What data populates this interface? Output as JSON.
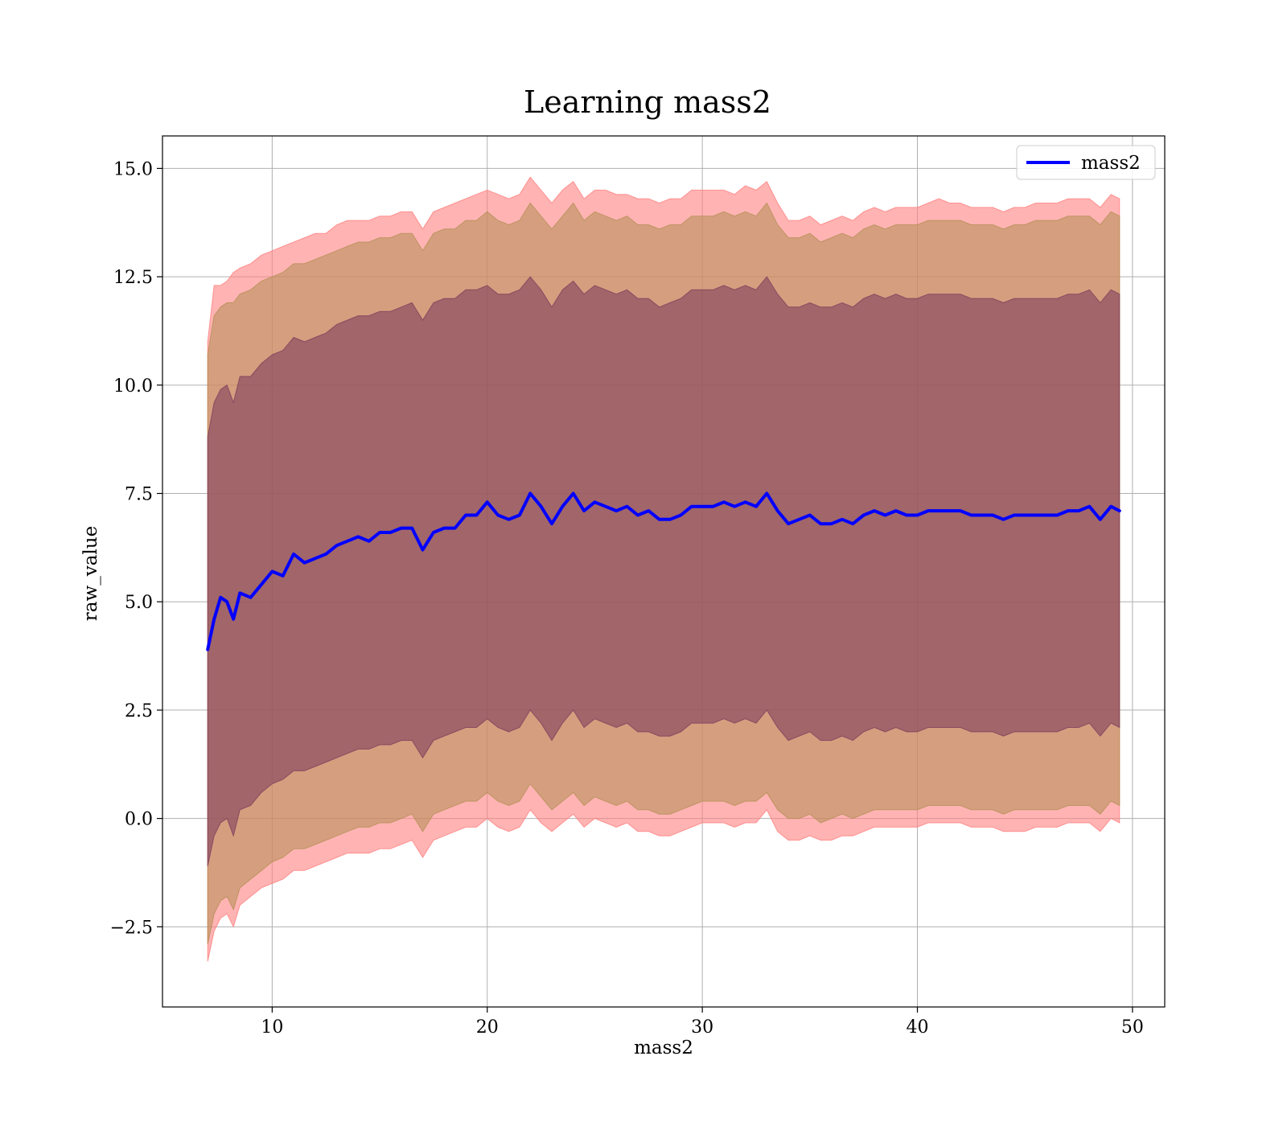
{
  "chart_data": {
    "type": "line",
    "title": "Learning mass2",
    "xlabel": "mass2",
    "ylabel": "raw_value",
    "xlim": [
      4.9,
      51.5
    ],
    "ylim": [
      -4.35,
      15.75
    ],
    "xticks": [
      10,
      20,
      30,
      40,
      50
    ],
    "yticks": [
      -2.5,
      0.0,
      2.5,
      5.0,
      7.5,
      10.0,
      12.5,
      15.0
    ],
    "xtick_labels": [
      "10",
      "20",
      "30",
      "40",
      "50"
    ],
    "ytick_labels": [
      "−2.5",
      "0.0",
      "2.5",
      "5.0",
      "7.5",
      "10.0",
      "12.5",
      "15.0"
    ],
    "grid": true,
    "legend": {
      "position": "top-right",
      "entries": [
        {
          "label": "mass2",
          "color": "#0000ff"
        }
      ]
    },
    "series": [
      {
        "name": "mass2",
        "color": "#0000ff",
        "x": [
          7.0,
          7.3,
          7.6,
          7.9,
          8.2,
          8.5,
          9.0,
          9.5,
          10.0,
          10.5,
          11.0,
          11.5,
          12.0,
          12.5,
          13.0,
          13.5,
          14.0,
          14.5,
          15.0,
          15.5,
          16.0,
          16.5,
          17.0,
          17.5,
          18.0,
          18.5,
          19.0,
          19.5,
          20.0,
          20.5,
          21.0,
          21.5,
          22.0,
          22.5,
          23.0,
          23.5,
          24.0,
          24.5,
          25.0,
          25.5,
          26.0,
          26.5,
          27.0,
          27.5,
          28.0,
          28.5,
          29.0,
          29.5,
          30.0,
          30.5,
          31.0,
          31.5,
          32.0,
          32.5,
          33.0,
          33.5,
          34.0,
          34.5,
          35.0,
          35.5,
          36.0,
          36.5,
          37.0,
          37.5,
          38.0,
          38.5,
          39.0,
          39.5,
          40.0,
          40.5,
          41.0,
          41.5,
          42.0,
          42.5,
          43.0,
          43.5,
          44.0,
          44.5,
          45.0,
          45.5,
          46.0,
          46.5,
          47.0,
          47.5,
          48.0,
          48.5,
          49.0,
          49.4
        ],
        "y": [
          3.9,
          4.6,
          5.1,
          5.0,
          4.6,
          5.2,
          5.1,
          5.4,
          5.7,
          5.6,
          6.1,
          5.9,
          6.0,
          6.1,
          6.3,
          6.4,
          6.5,
          6.4,
          6.6,
          6.6,
          6.7,
          6.7,
          6.2,
          6.6,
          6.7,
          6.7,
          7.0,
          7.0,
          7.3,
          7.0,
          6.9,
          7.0,
          7.5,
          7.2,
          6.8,
          7.2,
          7.5,
          7.1,
          7.3,
          7.2,
          7.1,
          7.2,
          7.0,
          7.1,
          6.9,
          6.9,
          7.0,
          7.2,
          7.2,
          7.2,
          7.3,
          7.2,
          7.3,
          7.2,
          7.5,
          7.1,
          6.8,
          6.9,
          7.0,
          6.8,
          6.8,
          6.9,
          6.8,
          7.0,
          7.1,
          7.0,
          7.1,
          7.0,
          7.0,
          7.1,
          7.1,
          7.1,
          7.1,
          7.0,
          7.0,
          7.0,
          6.9,
          7.0,
          7.0,
          7.0,
          7.0,
          7.0,
          7.1,
          7.1,
          7.2,
          6.9,
          7.2,
          7.1
        ]
      }
    ],
    "bands": [
      {
        "color": "#ff8080",
        "opacity": 0.6,
        "upper": [
          11.0,
          12.3,
          12.3,
          12.4,
          12.6,
          12.7,
          12.8,
          13.0,
          13.1,
          13.2,
          13.3,
          13.4,
          13.5,
          13.5,
          13.7,
          13.8,
          13.8,
          13.8,
          13.9,
          13.9,
          14.0,
          14.0,
          13.6,
          14.0,
          14.1,
          14.2,
          14.3,
          14.4,
          14.5,
          14.4,
          14.3,
          14.4,
          14.8,
          14.5,
          14.2,
          14.5,
          14.7,
          14.3,
          14.5,
          14.5,
          14.4,
          14.4,
          14.3,
          14.3,
          14.2,
          14.3,
          14.3,
          14.5,
          14.5,
          14.5,
          14.5,
          14.4,
          14.6,
          14.5,
          14.7,
          14.2,
          13.8,
          13.8,
          13.9,
          13.7,
          13.8,
          13.9,
          13.8,
          14.0,
          14.1,
          14.0,
          14.1,
          14.1,
          14.1,
          14.2,
          14.3,
          14.2,
          14.2,
          14.1,
          14.1,
          14.1,
          14.0,
          14.1,
          14.1,
          14.2,
          14.2,
          14.2,
          14.3,
          14.3,
          14.3,
          14.1,
          14.4,
          14.3
        ],
        "lower": [
          -3.3,
          -2.6,
          -2.3,
          -2.2,
          -2.5,
          -2.0,
          -1.8,
          -1.6,
          -1.5,
          -1.4,
          -1.2,
          -1.2,
          -1.1,
          -1.0,
          -0.9,
          -0.8,
          -0.8,
          -0.8,
          -0.7,
          -0.7,
          -0.6,
          -0.5,
          -0.9,
          -0.5,
          -0.4,
          -0.3,
          -0.2,
          -0.2,
          0.0,
          -0.2,
          -0.3,
          -0.2,
          0.2,
          -0.1,
          -0.3,
          -0.1,
          0.1,
          -0.2,
          0.0,
          -0.1,
          -0.2,
          -0.1,
          -0.3,
          -0.3,
          -0.4,
          -0.4,
          -0.3,
          -0.2,
          -0.1,
          -0.1,
          -0.1,
          -0.2,
          -0.1,
          -0.1,
          0.2,
          -0.3,
          -0.5,
          -0.5,
          -0.4,
          -0.5,
          -0.5,
          -0.4,
          -0.4,
          -0.3,
          -0.2,
          -0.2,
          -0.2,
          -0.2,
          -0.2,
          -0.1,
          -0.1,
          -0.1,
          -0.1,
          -0.2,
          -0.2,
          -0.2,
          -0.3,
          -0.3,
          -0.3,
          -0.2,
          -0.2,
          -0.2,
          -0.1,
          -0.1,
          -0.1,
          -0.3,
          0.0,
          -0.1
        ]
      },
      {
        "color": "#b38e54",
        "opacity": 0.55,
        "upper": [
          10.7,
          11.6,
          11.8,
          11.9,
          11.9,
          12.1,
          12.2,
          12.4,
          12.5,
          12.6,
          12.8,
          12.8,
          12.9,
          13.0,
          13.1,
          13.2,
          13.3,
          13.3,
          13.4,
          13.4,
          13.5,
          13.5,
          13.1,
          13.5,
          13.6,
          13.6,
          13.8,
          13.8,
          14.0,
          13.8,
          13.7,
          13.8,
          14.2,
          13.9,
          13.6,
          13.9,
          14.2,
          13.8,
          14.0,
          13.9,
          13.8,
          13.9,
          13.7,
          13.7,
          13.6,
          13.7,
          13.7,
          13.9,
          13.9,
          13.9,
          14.0,
          13.9,
          14.0,
          13.9,
          14.2,
          13.7,
          13.4,
          13.4,
          13.5,
          13.3,
          13.4,
          13.5,
          13.4,
          13.6,
          13.7,
          13.6,
          13.7,
          13.7,
          13.7,
          13.8,
          13.8,
          13.8,
          13.8,
          13.7,
          13.7,
          13.7,
          13.6,
          13.7,
          13.7,
          13.8,
          13.8,
          13.8,
          13.9,
          13.9,
          13.9,
          13.7,
          14.0,
          13.9
        ],
        "lower": [
          -2.9,
          -2.2,
          -1.9,
          -1.8,
          -2.1,
          -1.6,
          -1.4,
          -1.2,
          -1.0,
          -0.9,
          -0.7,
          -0.7,
          -0.6,
          -0.5,
          -0.4,
          -0.3,
          -0.2,
          -0.2,
          -0.1,
          -0.1,
          0.0,
          0.1,
          -0.3,
          0.1,
          0.2,
          0.3,
          0.4,
          0.4,
          0.6,
          0.4,
          0.3,
          0.4,
          0.8,
          0.5,
          0.2,
          0.4,
          0.6,
          0.3,
          0.5,
          0.4,
          0.3,
          0.4,
          0.2,
          0.2,
          0.1,
          0.1,
          0.2,
          0.3,
          0.4,
          0.4,
          0.4,
          0.3,
          0.4,
          0.4,
          0.6,
          0.2,
          0.0,
          0.0,
          0.1,
          -0.1,
          0.0,
          0.1,
          0.0,
          0.1,
          0.2,
          0.2,
          0.2,
          0.2,
          0.2,
          0.3,
          0.3,
          0.3,
          0.3,
          0.2,
          0.2,
          0.2,
          0.1,
          0.2,
          0.2,
          0.2,
          0.2,
          0.2,
          0.3,
          0.3,
          0.3,
          0.1,
          0.4,
          0.3
        ]
      },
      {
        "color": "#7f3f5c",
        "opacity": 0.6,
        "upper": [
          8.8,
          9.6,
          9.9,
          10.0,
          9.6,
          10.2,
          10.2,
          10.5,
          10.7,
          10.8,
          11.1,
          11.0,
          11.1,
          11.2,
          11.4,
          11.5,
          11.6,
          11.6,
          11.7,
          11.7,
          11.8,
          11.9,
          11.5,
          11.9,
          12.0,
          12.0,
          12.2,
          12.2,
          12.3,
          12.1,
          12.1,
          12.2,
          12.5,
          12.2,
          11.8,
          12.2,
          12.4,
          12.1,
          12.3,
          12.2,
          12.1,
          12.2,
          12.0,
          12.0,
          11.8,
          11.9,
          12.0,
          12.2,
          12.2,
          12.2,
          12.3,
          12.2,
          12.3,
          12.2,
          12.5,
          12.1,
          11.8,
          11.8,
          11.9,
          11.8,
          11.8,
          11.9,
          11.8,
          12.0,
          12.1,
          12.0,
          12.1,
          12.0,
          12.0,
          12.1,
          12.1,
          12.1,
          12.1,
          12.0,
          12.0,
          12.0,
          11.9,
          12.0,
          12.0,
          12.0,
          12.0,
          12.0,
          12.1,
          12.1,
          12.2,
          11.9,
          12.2,
          12.1
        ],
        "lower": [
          -1.1,
          -0.4,
          -0.1,
          0.0,
          -0.4,
          0.2,
          0.3,
          0.6,
          0.8,
          0.9,
          1.1,
          1.1,
          1.2,
          1.3,
          1.4,
          1.5,
          1.6,
          1.6,
          1.7,
          1.7,
          1.8,
          1.8,
          1.4,
          1.8,
          1.9,
          2.0,
          2.1,
          2.1,
          2.3,
          2.1,
          2.0,
          2.1,
          2.5,
          2.2,
          1.8,
          2.2,
          2.5,
          2.1,
          2.3,
          2.2,
          2.1,
          2.2,
          2.0,
          2.0,
          1.9,
          1.9,
          2.0,
          2.2,
          2.2,
          2.2,
          2.3,
          2.2,
          2.3,
          2.2,
          2.5,
          2.1,
          1.8,
          1.9,
          2.0,
          1.8,
          1.8,
          1.9,
          1.8,
          2.0,
          2.1,
          2.0,
          2.1,
          2.0,
          2.0,
          2.1,
          2.1,
          2.1,
          2.1,
          2.0,
          2.0,
          2.0,
          1.9,
          2.0,
          2.0,
          2.0,
          2.0,
          2.0,
          2.1,
          2.1,
          2.2,
          1.9,
          2.2,
          2.1
        ]
      }
    ]
  }
}
